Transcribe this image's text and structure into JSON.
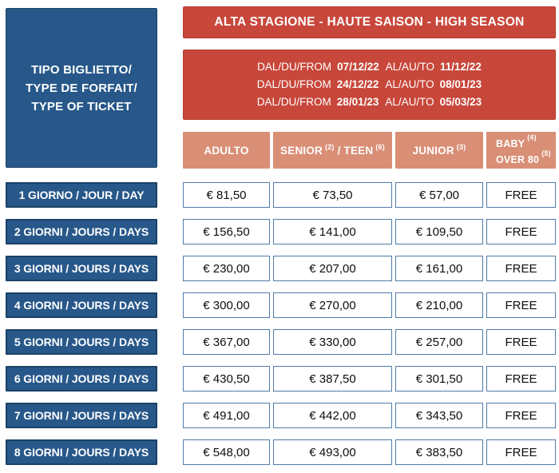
{
  "season_banner": "ALTA STAGIONE - HAUTE SAISON - HIGH SEASON",
  "ticket_type_box": {
    "line1": "TIPO BIGLIETTO/",
    "line2": "TYPE DE FORFAIT/",
    "line3": "TYPE OF TICKET"
  },
  "periods": [
    {
      "from_label": "DAL/DU/FROM",
      "from_date": "07/12/22",
      "to_label": "AL/AU/TO",
      "to_date": "11/12/22"
    },
    {
      "from_label": "DAL/DU/FROM",
      "from_date": "24/12/22",
      "to_label": "AL/AU/TO",
      "to_date": "08/01/23"
    },
    {
      "from_label": "DAL/DU/FROM",
      "from_date": "28/01/23",
      "to_label": "AL/AU/TO",
      "to_date": "05/03/23"
    }
  ],
  "columns": {
    "adulto": {
      "label": "ADULTO"
    },
    "senior_teen": {
      "part1": "SENIOR",
      "sup1": "(2)",
      "part2": "/ TEEN",
      "sup2": "(6)"
    },
    "junior": {
      "label": "JUNIOR",
      "sup": "(3)"
    },
    "baby": {
      "line1": "BABY",
      "sup1": "(4)",
      "line2": "OVER 80",
      "sup2": "(5)"
    }
  },
  "rows": [
    {
      "label": "1 GIORNO / JOUR / DAY",
      "adulto": "€ 81,50",
      "senior_teen": "€ 73,50",
      "junior": "€ 57,00",
      "baby": "FREE"
    },
    {
      "label": "2 GIORNI / JOURS / DAYS",
      "adulto": "€ 156,50",
      "senior_teen": "€ 141,00",
      "junior": "€ 109,50",
      "baby": "FREE"
    },
    {
      "label": "3 GIORNI / JOURS / DAYS",
      "adulto": "€ 230,00",
      "senior_teen": "€ 207,00",
      "junior": "€ 161,00",
      "baby": "FREE"
    },
    {
      "label": "4 GIORNI / JOURS / DAYS",
      "adulto": "€ 300,00",
      "senior_teen": "€ 270,00",
      "junior": "€ 210,00",
      "baby": "FREE"
    },
    {
      "label": "5 GIORNI / JOURS / DAYS",
      "adulto": "€ 367,00",
      "senior_teen": "€ 330,00",
      "junior": "€ 257,00",
      "baby": "FREE"
    },
    {
      "label": "6 GIORNI / JOURS / DAYS",
      "adulto": "€ 430,50",
      "senior_teen": "€ 387,50",
      "junior": "€ 301,50",
      "baby": "FREE"
    },
    {
      "label": "7 GIORNI / JOURS / DAYS",
      "adulto": "€ 491,00",
      "senior_teen": "€ 442,00",
      "junior": "€ 343,50",
      "baby": "FREE"
    },
    {
      "label": "8 GIORNI / JOURS / DAYS",
      "adulto": "€ 548,00",
      "senior_teen": "€ 493,00",
      "junior": "€ 383,50",
      "baby": "FREE"
    }
  ],
  "colors": {
    "red": "#c8473b",
    "blue": "#28588a",
    "blue_border": "#1b4165",
    "salmon": "#d98e76",
    "cell_border": "#4f7ba7"
  }
}
